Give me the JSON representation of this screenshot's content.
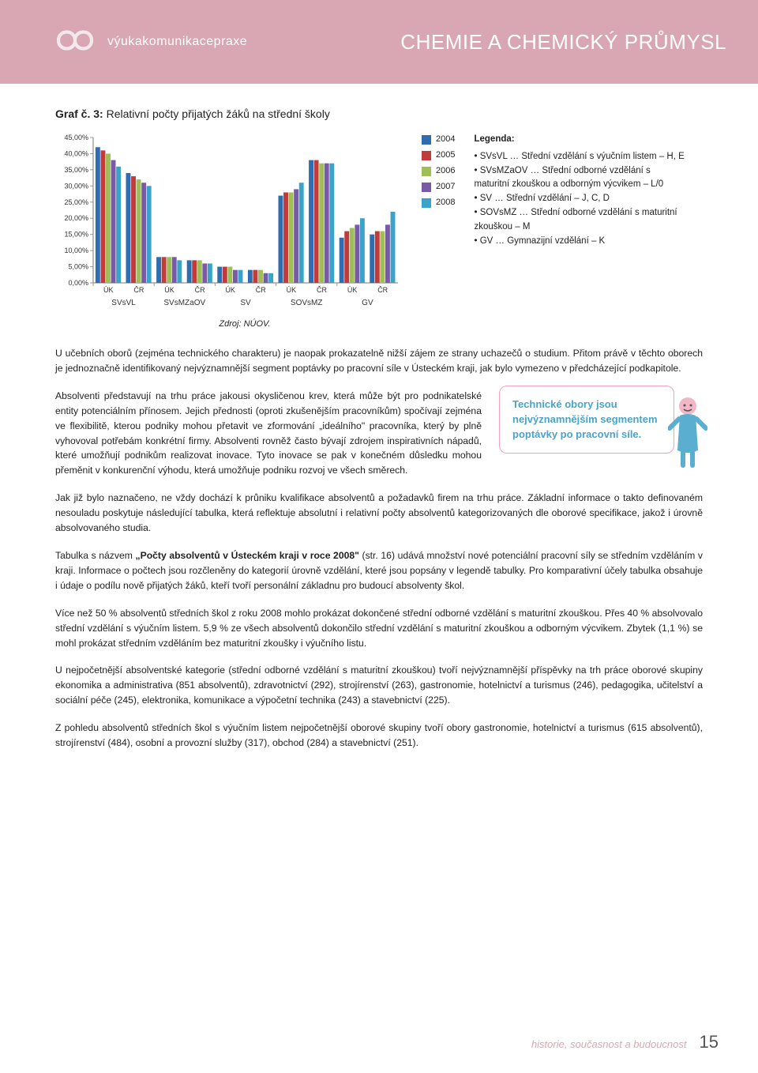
{
  "header": {
    "logo_text": "výukakomunikacepraxe",
    "title": "CHEMIE A CHEMICKÝ PRŮMYSL"
  },
  "chart": {
    "type": "bar",
    "title_prefix": "Graf č. 3:",
    "title_rest": " Relativní počty přijatých žáků na střední školy",
    "y_ticks": [
      "45,00%",
      "40,00%",
      "35,00%",
      "30,00%",
      "25,00%",
      "20,00%",
      "15,00%",
      "10,00%",
      "5,00%",
      "0,00%"
    ],
    "y_max": 45,
    "groups": [
      "SVsVL",
      "SVsMZaOV",
      "SV",
      "SOVsMZ",
      "GV"
    ],
    "sub_labels": [
      "ÚK",
      "ČR"
    ],
    "series": [
      {
        "year": "2004",
        "color": "#2f6db0"
      },
      {
        "year": "2005",
        "color": "#c23a3a"
      },
      {
        "year": "2006",
        "color": "#9dbf55"
      },
      {
        "year": "2007",
        "color": "#7a5aa6"
      },
      {
        "year": "2008",
        "color": "#3aa3c9"
      }
    ],
    "values": {
      "SVsVL": {
        "UK": [
          42,
          41,
          40,
          38,
          36
        ],
        "CR": [
          34,
          33,
          32,
          31,
          30
        ]
      },
      "SVsMZaOV": {
        "UK": [
          8,
          8,
          8,
          8,
          7
        ],
        "CR": [
          7,
          7,
          7,
          6,
          6
        ]
      },
      "SV": {
        "UK": [
          5,
          5,
          5,
          4,
          4
        ],
        "CR": [
          4,
          4,
          4,
          3,
          3
        ]
      },
      "SOVsMZ": {
        "UK": [
          27,
          28,
          28,
          29,
          31
        ],
        "CR": [
          38,
          38,
          37,
          37,
          37
        ]
      },
      "GV": {
        "UK": [
          14,
          16,
          17,
          18,
          20
        ],
        "CR": [
          15,
          16,
          16,
          18,
          22
        ]
      }
    },
    "legend_header": "Legenda:",
    "legend_items": [
      "SVsVL … Střední vzdělání s výučním listem – H, E",
      "SVsMZaOV … Střední odborné vzdělání s maturitní zkouškou a odborným výcvikem – L/0",
      "SV … Střední vzdělání – J, C, D",
      "SOVsMZ … Střední odborné vzdělání s maturitní zkouškou – M",
      "GV … Gymnazijní vzdělání – K"
    ],
    "source": "Zdroj: NÚOV."
  },
  "paragraphs": {
    "p1": "U učebních oborů (zejména technického charakteru) je naopak prokazatelně nižší zájem ze strany uchazečů o studium. Přitom právě v těchto oborech je jednoznačně identifikovaný nejvýznamnější segment poptávky po pracovní síle v Ústeckém kraji, jak bylo vymezeno v předcházející podkapitole.",
    "p2": "Absolventi představují na trhu práce jakousi okysličenou krev, která může být pro podnikatelské entity potenciálním přínosem. Jejich přednosti (oproti zkušenějším pracovníkům) spočívají zejména ve flexibilitě, kterou podniky mohou přetavit ve zformování „ideálního\" pracovníka, který by plně vyhovoval potřebám konkrétní firmy. Absolventi rovněž často bývají zdrojem inspirativních nápadů, které umožňují podnikům realizovat inovace. Tyto inovace se pak v konečném důsledku mohou přeměnit v konkurenční výhodu, která umožňuje podniku rozvoj ve všech směrech.",
    "p3": "Jak již bylo naznačeno, ne vždy dochází k průniku kvalifikace absolventů a požadavků firem na trhu práce. Základní informace o takto definovaném nesouladu poskytuje následující tabulka, která reflektuje absolutní i relativní počty absolventů kategorizovaných dle oborové specifikace, jakož i úrovně absolvovaného studia.",
    "p4a": "Tabulka s názvem ",
    "p4b": "„Počty absolventů v Ústeckém kraji v roce 2008\"",
    "p4c": " (str. 16) udává množství nové potenciální pracovní síly se středním vzděláním v kraji. Informace o počtech jsou rozčleněny do kategorií úrovně vzdělání, které jsou popsány v legendě tabulky. Pro komparativní účely tabulka obsahuje i údaje o podílu nově přijatých žáků, kteří tvoří personální základnu pro budoucí absolventy škol.",
    "p5": "Více než 50 % absolventů středních škol z roku 2008 mohlo prokázat dokončené střední odborné vzdělání s maturitní zkouškou. Přes 40 % absolvovalo střední vzdělání s výučním listem. 5,9 % ze všech absolventů dokončilo střední vzdělání s maturitní zkouškou a odborným výcvikem. Zbytek (1,1 %) se mohl prokázat středním vzděláním bez maturitní zkoušky i výučního listu.",
    "p6": "U nejpočetnější absolventské kategorie (střední odborné vzdělání s maturitní zkouškou) tvoří nejvýznamnější příspěvky na trh práce oborové skupiny ekonomika a administrativa (851 absolventů), zdravotnictví (292), strojírenství (263), gastronomie, hotelnictví a turismus (246), pedagogika, učitelství a sociální péče (245), elektronika, komunikace a výpočetní technika (243) a stavebnictví (225).",
    "p7": "Z pohledu absolventů středních škol s výučním listem nejpočetnější oborové skupiny tvoří obory gastronomie, hotelnictví a turismus (615 absolventů), strojírenství (484), osobní a provozní služby (317), obchod (284) a stavebnictví (251)."
  },
  "callout": {
    "line1": "Technické obory jsou",
    "line2": "nejvýznamnějším segmentem",
    "line3": "poptávky po pracovní síle."
  },
  "footer": {
    "text": "historie, současnost a budoucnost",
    "page": "15"
  },
  "colors": {
    "header_bg": "#d9a6b3",
    "accent_blue": "#4aa3c9",
    "callout_border": "#f3a0b8"
  }
}
